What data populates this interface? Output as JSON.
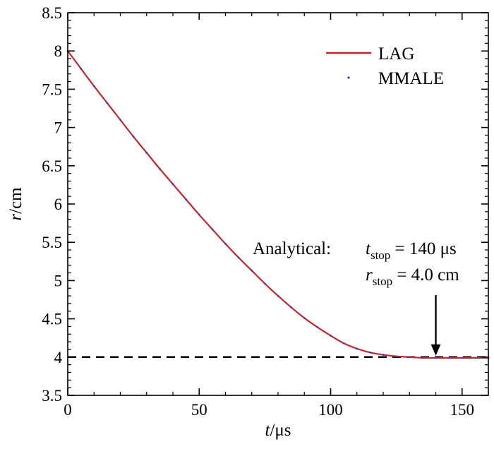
{
  "chart_data": {
    "type": "line",
    "x": [
      0,
      5,
      10,
      15,
      20,
      25,
      30,
      35,
      40,
      45,
      50,
      55,
      60,
      65,
      70,
      75,
      80,
      85,
      90,
      95,
      100,
      105,
      110,
      115,
      120,
      125,
      130,
      135,
      140,
      145,
      150,
      155,
      160
    ],
    "series": [
      {
        "name": "LAG",
        "color": "#c0282d",
        "style": "solid line",
        "values": [
          8.0,
          7.77,
          7.54,
          7.32,
          7.1,
          6.88,
          6.67,
          6.46,
          6.26,
          6.06,
          5.86,
          5.67,
          5.48,
          5.3,
          5.13,
          4.96,
          4.8,
          4.65,
          4.51,
          4.39,
          4.28,
          4.18,
          4.11,
          4.06,
          4.03,
          4.01,
          4.0,
          3.99,
          3.99,
          3.99,
          3.99,
          3.99,
          3.99
        ]
      },
      {
        "name": "MMALE",
        "color": "#3c3cc8",
        "style": "dots",
        "values": [
          8.0,
          7.77,
          7.54,
          7.32,
          7.1,
          6.88,
          6.67,
          6.46,
          6.26,
          6.06,
          5.86,
          5.67,
          5.48,
          5.3,
          5.13,
          4.96,
          4.8,
          4.65,
          4.51,
          4.39,
          4.28,
          4.18,
          4.11,
          4.06,
          4.03,
          4.01,
          4.0,
          3.99,
          3.99,
          3.99,
          3.99,
          3.99,
          3.99
        ]
      }
    ],
    "reference_line": {
      "y": 4.0,
      "style": "dashed",
      "color": "#000000"
    },
    "xlim": [
      0,
      160
    ],
    "ylim": [
      3.5,
      8.5
    ],
    "x_ticks": [
      0,
      50,
      100,
      150
    ],
    "x_tick_labels": [
      "0",
      "50",
      "100",
      "150"
    ],
    "y_ticks": [
      3.5,
      4,
      4.5,
      5,
      5.5,
      6,
      6.5,
      7,
      7.5,
      8,
      8.5
    ],
    "y_tick_labels": [
      "3.5",
      "4",
      "4.5",
      "5",
      "5.5",
      "6",
      "6.5",
      "7",
      "7.5",
      "8",
      "8.5"
    ],
    "xlabel": {
      "var": "t",
      "unit": "/μs"
    },
    "ylabel": {
      "var": "r",
      "unit": "/cm"
    },
    "grid": false,
    "legend_position": "top-right",
    "annotation": {
      "prefix": "Analytical:",
      "line1": {
        "var": "t",
        "sub": "stop",
        "value": "= 140 μs"
      },
      "line2": {
        "var": "r",
        "sub": "stop",
        "value": "= 4.0 cm"
      },
      "arrow_target": {
        "x": 140,
        "y": 4.0
      }
    }
  }
}
